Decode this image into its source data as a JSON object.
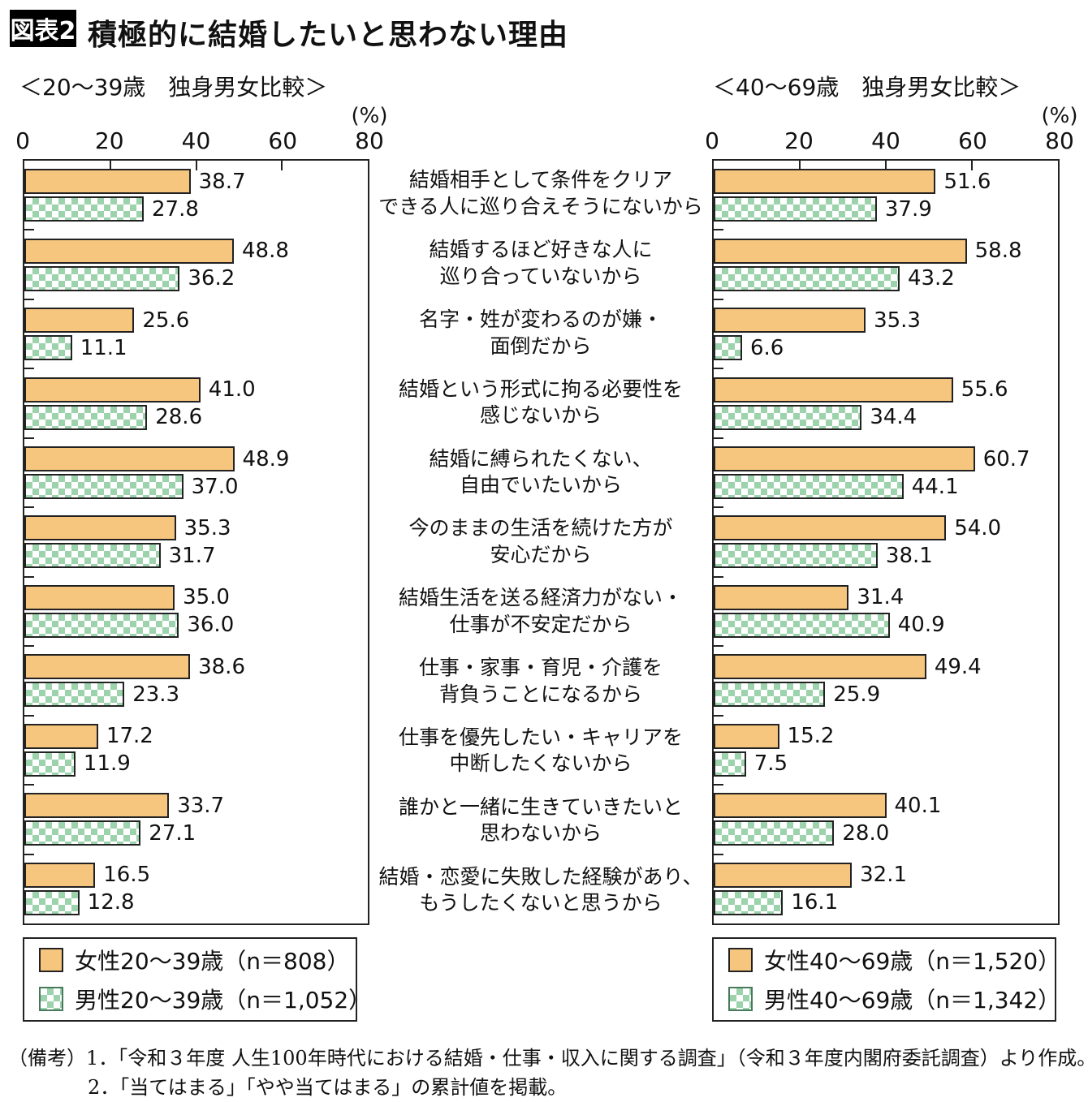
{
  "header": {
    "badge": "図表2",
    "title": "積極的に結婚したいと思わない理由"
  },
  "colors": {
    "female_bar": "#F6C57E",
    "male_checker": "#9CD2AC",
    "bar_border": "#222222",
    "badge_bg": "#000000",
    "badge_text": "#ffffff"
  },
  "chart_data": {
    "type": "bar",
    "orientation": "horizontal",
    "grid": "off",
    "axis": {
      "ticks": [
        0,
        20,
        40,
        60,
        80
      ],
      "max": 80,
      "label": "(%)"
    },
    "categories": [
      [
        "結婚相手として条件をクリア",
        "できる人に巡り合えそうにないから"
      ],
      [
        "結婚するほど好きな人に",
        "巡り合っていないから"
      ],
      [
        "名字・姓が変わるのが嫌・",
        "面倒だから"
      ],
      [
        "結婚という形式に拘る必要性を",
        "感じないから"
      ],
      [
        "結婚に縛られたくない、",
        "自由でいたいから"
      ],
      [
        "今のままの生活を続けた方が",
        "安心だから"
      ],
      [
        "結婚生活を送る経済力がない・",
        "仕事が不安定だから"
      ],
      [
        "仕事・家事・育児・介護を",
        "背負うことになるから"
      ],
      [
        "仕事を優先したい・キャリアを",
        "中断したくないから"
      ],
      [
        "誰かと一緒に生きていきたいと",
        "思わないから"
      ],
      [
        "結婚・恋愛に失敗した経験があり、",
        "もうしたくないと思うから"
      ]
    ],
    "charts": [
      {
        "subtitle": "＜20〜39歳　独身男女比較＞",
        "legend": [
          {
            "swatch": "female",
            "label": "女性20〜39歳（n＝808）"
          },
          {
            "swatch": "male",
            "label": "男性20〜39歳（n＝1,052）"
          }
        ],
        "series": [
          {
            "name": "女性20〜39歳",
            "values": [
              38.7,
              48.8,
              25.6,
              41.0,
              48.9,
              35.3,
              35.0,
              38.6,
              17.2,
              33.7,
              16.5
            ]
          },
          {
            "name": "男性20〜39歳",
            "values": [
              27.8,
              36.2,
              11.1,
              28.6,
              37.0,
              31.7,
              36.0,
              23.3,
              11.9,
              27.1,
              12.8
            ]
          }
        ]
      },
      {
        "subtitle": "＜40〜69歳　独身男女比較＞",
        "legend": [
          {
            "swatch": "female",
            "label": "女性40〜69歳（n＝1,520）"
          },
          {
            "swatch": "male",
            "label": "男性40〜69歳（n＝1,342）"
          }
        ],
        "series": [
          {
            "name": "女性40〜69歳",
            "values": [
              51.6,
              58.8,
              35.3,
              55.6,
              60.7,
              54.0,
              31.4,
              49.4,
              15.2,
              40.1,
              32.1
            ]
          },
          {
            "name": "男性40〜69歳",
            "values": [
              37.9,
              43.2,
              6.6,
              34.4,
              44.1,
              38.1,
              40.9,
              25.9,
              7.5,
              28.0,
              16.1
            ]
          }
        ]
      }
    ]
  },
  "footer": {
    "lines": [
      "（備考）1．「令和３年度 人生100年時代における結婚・仕事・収入に関する調査」（令和３年度内閣府委託調査）より作成。",
      "2．「当てはまる」「やや当てはまる」の累計値を掲載。"
    ]
  }
}
